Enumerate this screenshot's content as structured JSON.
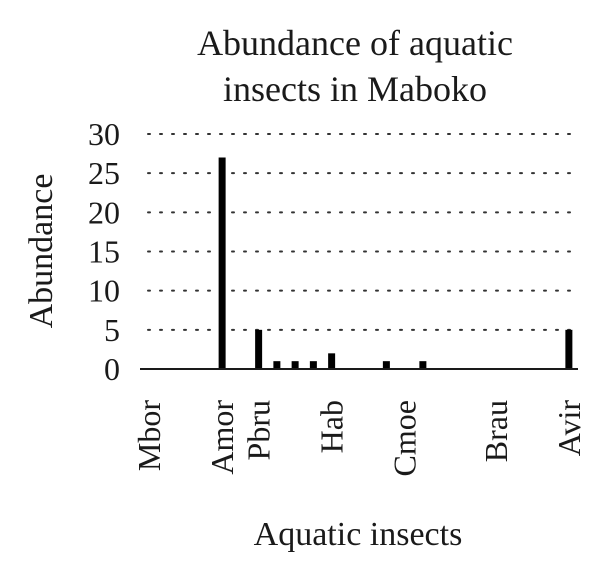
{
  "chart_data": {
    "type": "bar",
    "title_lines": [
      "Abundance of aquatic",
      "insects in Maboko"
    ],
    "xlabel": "Aquatic insects",
    "ylabel": "Abundance",
    "ylim": [
      0,
      30
    ],
    "yticks": [
      0,
      5,
      10,
      15,
      20,
      25,
      30
    ],
    "grid": true,
    "tick_labels": [
      "Mbor",
      "Amor",
      "Pbru",
      "Hab",
      "Cmoe",
      "Brau",
      "Avir"
    ],
    "categories": [
      "Mbor",
      "",
      "",
      "",
      "Amor",
      "",
      "Pbru",
      "",
      "",
      "",
      "Hab",
      "",
      "",
      "",
      "Cmoe",
      "",
      "",
      "",
      "",
      "Brau",
      "",
      "",
      "",
      "Avir"
    ],
    "values": [
      0,
      0,
      0,
      0,
      27,
      0,
      5,
      1,
      1,
      1,
      2,
      0,
      0,
      1,
      0,
      1,
      0,
      0,
      0,
      0,
      0,
      0,
      0,
      5
    ]
  }
}
